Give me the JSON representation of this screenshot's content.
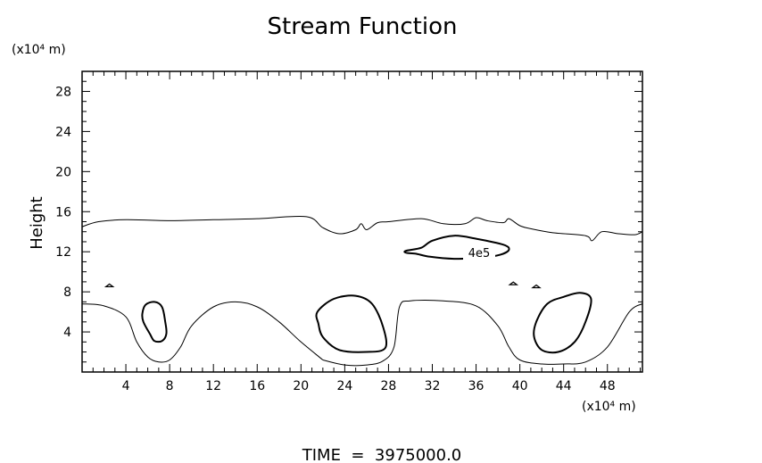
{
  "chart_data": {
    "type": "contour",
    "title": "Stream Function",
    "ylabel": "Height",
    "y_unit_label": "(x10⁴ m)",
    "x_unit_label": "(x10⁴ m)",
    "xlim": [
      0,
      51.2
    ],
    "ylim": [
      0,
      30
    ],
    "x_ticks": [
      4,
      8,
      12,
      16,
      20,
      24,
      28,
      32,
      36,
      40,
      44,
      48
    ],
    "y_ticks": [
      4,
      8,
      12,
      16,
      20,
      24,
      28
    ],
    "contour_label": "4e5",
    "footer": "TIME  =  3975000.0",
    "thin_contours": [
      {
        "name": "upper",
        "points": [
          [
            0,
            14.5
          ],
          [
            1.5,
            15.0
          ],
          [
            4,
            15.2
          ],
          [
            8,
            15.1
          ],
          [
            12,
            15.2
          ],
          [
            16,
            15.3
          ],
          [
            20.5,
            15.5
          ],
          [
            22,
            14.4
          ],
          [
            23.5,
            13.8
          ],
          [
            25,
            14.2
          ],
          [
            25.5,
            14.8
          ],
          [
            26,
            14.2
          ],
          [
            27,
            14.9
          ],
          [
            28,
            15.0
          ],
          [
            31,
            15.3
          ],
          [
            33,
            14.8
          ],
          [
            35,
            14.8
          ],
          [
            36,
            15.4
          ],
          [
            37,
            15.1
          ],
          [
            38.5,
            14.9
          ],
          [
            39,
            15.3
          ],
          [
            40,
            14.6
          ],
          [
            41,
            14.3
          ],
          [
            43,
            13.9
          ],
          [
            46,
            13.6
          ],
          [
            46.6,
            13.1
          ],
          [
            47.5,
            14.0
          ],
          [
            49,
            13.8
          ],
          [
            50.5,
            13.7
          ],
          [
            51.2,
            14.0
          ]
        ]
      },
      {
        "name": "lower-0-22",
        "points": [
          [
            0,
            6.8
          ],
          [
            2,
            6.6
          ],
          [
            4,
            5.5
          ],
          [
            5,
            3.0
          ],
          [
            6,
            1.5
          ],
          [
            7,
            1.0
          ],
          [
            8,
            1.2
          ],
          [
            9,
            2.5
          ],
          [
            10,
            4.6
          ],
          [
            12,
            6.5
          ],
          [
            14,
            7.0
          ],
          [
            16,
            6.5
          ],
          [
            18,
            5.0
          ],
          [
            20,
            3.0
          ],
          [
            22,
            1.2
          ]
        ]
      },
      {
        "name": "lower-22-51",
        "points": [
          [
            22,
            1.2
          ],
          [
            24,
            0.7
          ],
          [
            26,
            0.7
          ],
          [
            27.5,
            1.1
          ],
          [
            28.5,
            2.5
          ],
          [
            29,
            6.5
          ],
          [
            30,
            7.1
          ],
          [
            33,
            7.1
          ],
          [
            36,
            6.6
          ],
          [
            38,
            4.6
          ],
          [
            39,
            2.5
          ],
          [
            40,
            1.2
          ],
          [
            42,
            0.8
          ],
          [
            44,
            0.8
          ],
          [
            46,
            1.0
          ],
          [
            48,
            2.5
          ],
          [
            50,
            6.0
          ],
          [
            51.2,
            6.8
          ]
        ]
      }
    ],
    "thick_contours": [
      {
        "name": "cell-1",
        "points": [
          [
            5.5,
            5.8
          ],
          [
            5.8,
            6.7
          ],
          [
            6.6,
            7.0
          ],
          [
            7.3,
            6.5
          ],
          [
            7.6,
            5.0
          ],
          [
            7.7,
            3.8
          ],
          [
            7.3,
            3.1
          ],
          [
            6.6,
            3.1
          ],
          [
            6.2,
            3.8
          ],
          [
            5.6,
            5.0
          ]
        ]
      },
      {
        "name": "cell-2",
        "points": [
          [
            21.5,
            6.0
          ],
          [
            23.0,
            7.3
          ],
          [
            25.0,
            7.6
          ],
          [
            26.5,
            6.8
          ],
          [
            27.5,
            4.5
          ],
          [
            27.7,
            2.4
          ],
          [
            26.0,
            2.0
          ],
          [
            23.5,
            2.2
          ],
          [
            22.0,
            3.5
          ],
          [
            21.6,
            4.8
          ]
        ]
      },
      {
        "name": "cell-3",
        "points": [
          [
            41.5,
            5.0
          ],
          [
            42.5,
            6.8
          ],
          [
            44.0,
            7.5
          ],
          [
            45.5,
            7.9
          ],
          [
            46.5,
            7.3
          ],
          [
            46.0,
            5.0
          ],
          [
            45.0,
            3.0
          ],
          [
            43.5,
            2.0
          ],
          [
            42.0,
            2.2
          ],
          [
            41.3,
            3.5
          ]
        ]
      },
      {
        "name": "upper-cell",
        "points": [
          [
            29.6,
            12.1
          ],
          [
            31,
            12.4
          ],
          [
            32,
            13.1
          ],
          [
            34,
            13.6
          ],
          [
            36,
            13.3
          ],
          [
            38.5,
            12.7
          ],
          [
            39,
            12.2
          ],
          [
            38.2,
            11.7
          ],
          [
            36.5,
            11.4
          ],
          [
            34,
            11.3
          ],
          [
            31.8,
            11.5
          ],
          [
            30.5,
            11.8
          ],
          [
            29.6,
            11.9
          ]
        ]
      }
    ],
    "markers": [
      [
        2.5,
        8.6
      ],
      [
        39.4,
        8.8
      ],
      [
        41.5,
        8.5
      ]
    ]
  }
}
